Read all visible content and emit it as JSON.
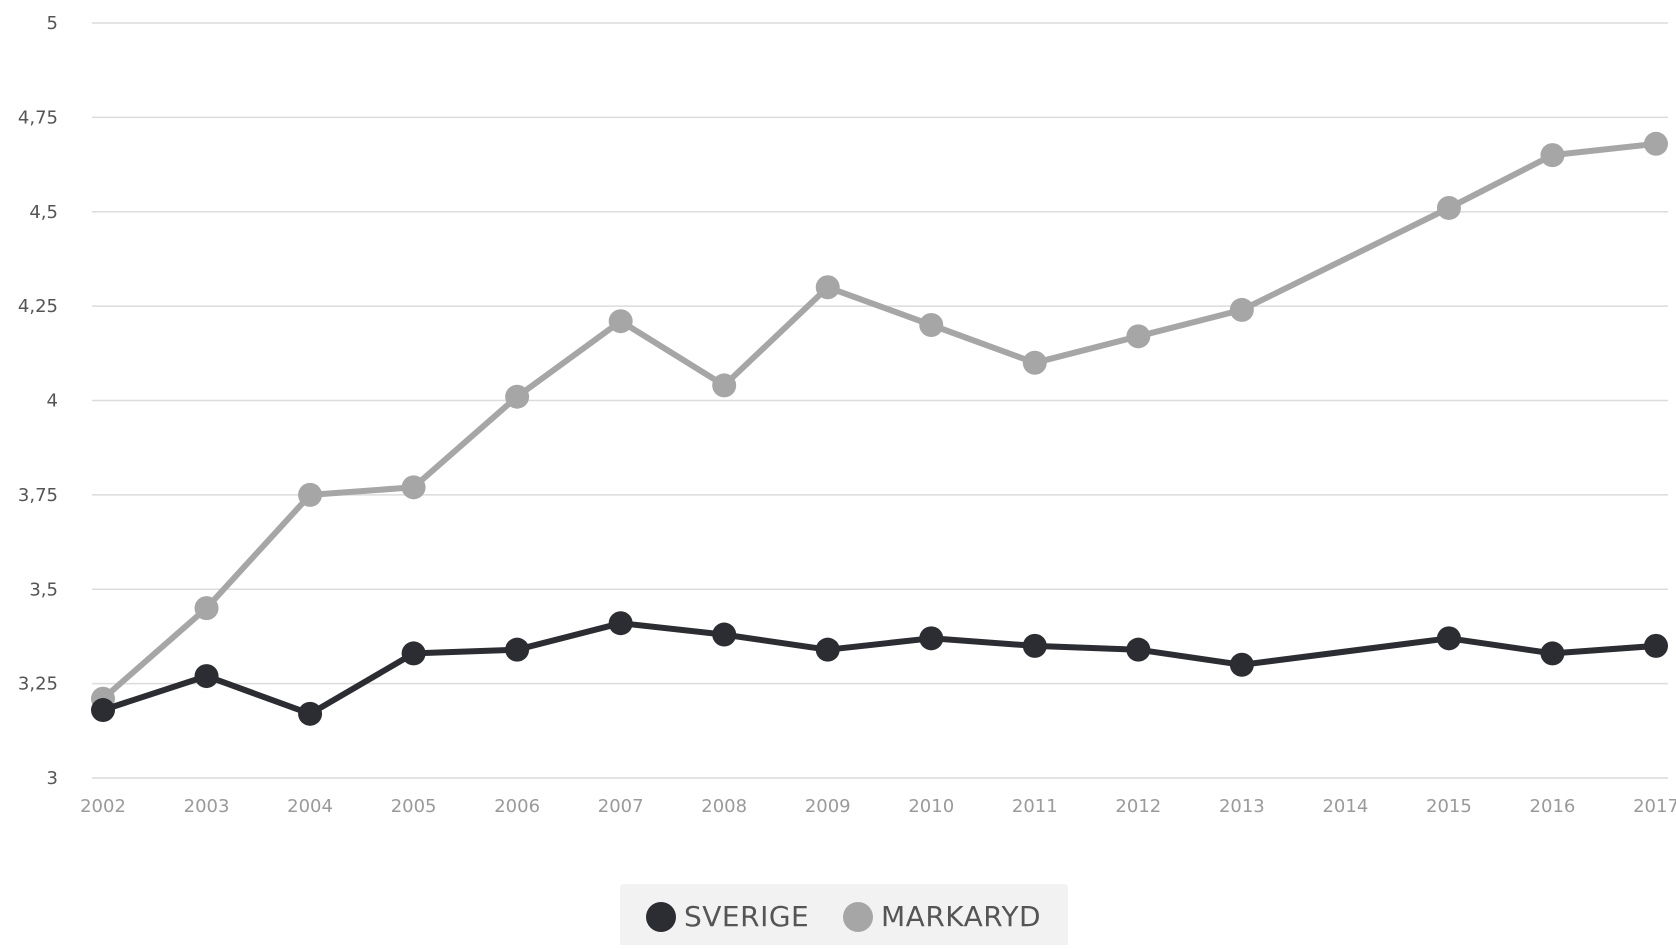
{
  "chart_data": {
    "type": "line",
    "title": "",
    "xlabel": "",
    "ylabel": "",
    "x": [
      "2002",
      "2003",
      "2004",
      "2005",
      "2006",
      "2007",
      "2008",
      "2009",
      "2010",
      "2011",
      "2012",
      "2013",
      "2014",
      "2015",
      "2016",
      "2017"
    ],
    "ylim": [
      3,
      5
    ],
    "yticks": [
      3,
      3.25,
      3.5,
      3.75,
      4,
      4.25,
      4.5,
      4.75,
      5
    ],
    "ytick_labels": [
      "3",
      "3,25",
      "3,5",
      "3,75",
      "4",
      "4,25",
      "4,5",
      "4,75",
      "5"
    ],
    "grid": true,
    "legend_position": "bottom-center",
    "series": [
      {
        "name": "SVERIGE",
        "color": "#2b2d33",
        "values": [
          3.18,
          3.27,
          3.17,
          3.33,
          3.34,
          3.41,
          3.38,
          3.34,
          3.37,
          3.35,
          3.34,
          3.3,
          null,
          3.37,
          3.33,
          3.35
        ]
      },
      {
        "name": "MARKARYD",
        "color": "#a6a6a6",
        "values": [
          3.21,
          3.45,
          3.75,
          3.77,
          4.01,
          4.21,
          4.04,
          4.3,
          4.2,
          4.1,
          4.17,
          4.24,
          null,
          4.51,
          4.65,
          4.68
        ]
      }
    ]
  }
}
